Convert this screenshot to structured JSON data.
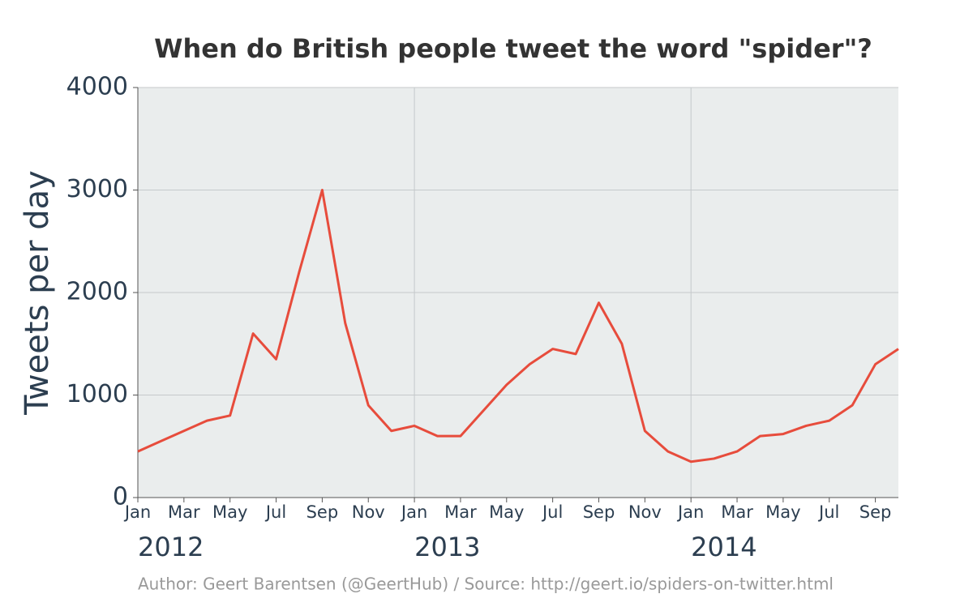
{
  "chart_data": {
    "type": "line",
    "title": "When do British people tweet the word \"spider\"?",
    "y_label": "Tweets per day",
    "footer": "Author: Geert Barentsen (@GeertHub) / Source: http://geert.io/spiders-on-twitter.html",
    "x": [
      "2012-01",
      "2012-02",
      "2012-03",
      "2012-04",
      "2012-05",
      "2012-06",
      "2012-07",
      "2012-08",
      "2012-09",
      "2012-10",
      "2012-11",
      "2012-12",
      "2013-01",
      "2013-02",
      "2013-03",
      "2013-04",
      "2013-05",
      "2013-06",
      "2013-07",
      "2013-08",
      "2013-09",
      "2013-10",
      "2013-11",
      "2013-12",
      "2014-01",
      "2014-02",
      "2014-03",
      "2014-04",
      "2014-05",
      "2014-06",
      "2014-07",
      "2014-08",
      "2014-09",
      "2014-10"
    ],
    "series": [
      {
        "name": "Tweets per day",
        "color": "#e74c3c",
        "values": [
          450,
          550,
          650,
          750,
          800,
          1600,
          1350,
          2200,
          3000,
          1700,
          900,
          650,
          700,
          600,
          600,
          850,
          1100,
          1300,
          1450,
          1400,
          1900,
          1500,
          650,
          450,
          350,
          380,
          450,
          600,
          620,
          700,
          750,
          900,
          1300,
          1450
        ]
      }
    ],
    "xlim": [
      "2012-01",
      "2014-10"
    ],
    "xticks": [
      {
        "value": "2012-01",
        "label": "Jan"
      },
      {
        "value": "2012-03",
        "label": "Mar"
      },
      {
        "value": "2012-05",
        "label": "May"
      },
      {
        "value": "2012-07",
        "label": "Jul"
      },
      {
        "value": "2012-09",
        "label": "Sep"
      },
      {
        "value": "2012-11",
        "label": "Nov"
      },
      {
        "value": "2013-01",
        "label": "Jan"
      },
      {
        "value": "2013-03",
        "label": "Mar"
      },
      {
        "value": "2013-05",
        "label": "May"
      },
      {
        "value": "2013-07",
        "label": "Jul"
      },
      {
        "value": "2013-09",
        "label": "Sep"
      },
      {
        "value": "2013-11",
        "label": "Nov"
      },
      {
        "value": "2014-01",
        "label": "Jan"
      },
      {
        "value": "2014-03",
        "label": "Mar"
      },
      {
        "value": "2014-05",
        "label": "May"
      },
      {
        "value": "2014-07",
        "label": "Jul"
      },
      {
        "value": "2014-09",
        "label": "Sep"
      }
    ],
    "year_ticks": [
      {
        "value": "2012-01",
        "label": "2012"
      },
      {
        "value": "2013-01",
        "label": "2013"
      },
      {
        "value": "2014-01",
        "label": "2014"
      }
    ],
    "ylim": [
      0,
      4000
    ],
    "yticks": [
      0,
      1000,
      2000,
      3000,
      4000
    ],
    "grid": true
  }
}
